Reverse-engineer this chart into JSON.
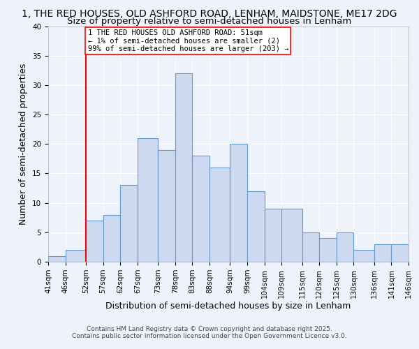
{
  "title1": "1, THE RED HOUSES, OLD ASHFORD ROAD, LENHAM, MAIDSTONE, ME17 2DG",
  "title2": "Size of property relative to semi-detached houses in Lenham",
  "xlabel": "Distribution of semi-detached houses by size in Lenham",
  "ylabel": "Number of semi-detached properties",
  "bins": [
    41,
    46,
    52,
    57,
    62,
    67,
    73,
    78,
    83,
    88,
    94,
    99,
    104,
    109,
    115,
    120,
    125,
    130,
    136,
    141,
    146
  ],
  "counts": [
    1,
    2,
    7,
    8,
    13,
    21,
    19,
    32,
    18,
    16,
    20,
    12,
    9,
    9,
    5,
    4,
    5,
    2,
    3,
    3
  ],
  "bar_color": "#ccd9f0",
  "bar_edge_color": "#6699cc",
  "red_line_x": 52,
  "ylim": [
    0,
    40
  ],
  "yticks": [
    0,
    5,
    10,
    15,
    20,
    25,
    30,
    35,
    40
  ],
  "xtick_labels": [
    "41sqm",
    "46sqm",
    "52sqm",
    "57sqm",
    "62sqm",
    "67sqm",
    "73sqm",
    "78sqm",
    "83sqm",
    "88sqm",
    "94sqm",
    "99sqm",
    "104sqm",
    "109sqm",
    "115sqm",
    "120sqm",
    "125sqm",
    "130sqm",
    "136sqm",
    "141sqm",
    "146sqm"
  ],
  "annotation_title": "1 THE RED HOUSES OLD ASHFORD ROAD: 51sqm",
  "annotation_line1": "← 1% of semi-detached houses are smaller (2)",
  "annotation_line2": "99% of semi-detached houses are larger (203) →",
  "footnote1": "Contains HM Land Registry data © Crown copyright and database right 2025.",
  "footnote2": "Contains public sector information licensed under the Open Government Licence v3.0.",
  "bg_color": "#eef2fb",
  "grid_color": "#ffffff",
  "title_fontsize": 10,
  "subtitle_fontsize": 9.5,
  "axis_fontsize": 9,
  "tick_fontsize": 7.5,
  "annotation_fontsize": 7.5,
  "footnote_fontsize": 6.5
}
